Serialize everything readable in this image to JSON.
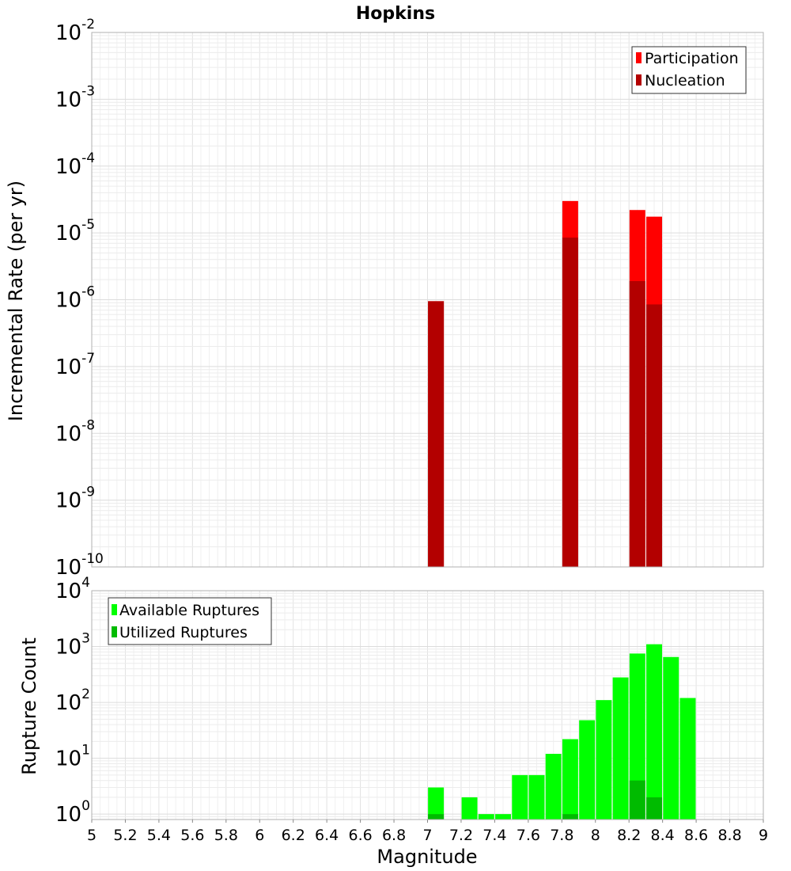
{
  "chart_data": [
    {
      "type": "bar",
      "title": "Hopkins",
      "ylabel": "Incremental Rate (per yr)",
      "xlabel": "",
      "y_scale": "log",
      "ylim": [
        1e-10,
        0.01
      ],
      "xlim": [
        5,
        9
      ],
      "y_ticks": [
        {
          "base": "10",
          "exp": "-10"
        },
        {
          "base": "10",
          "exp": "-9"
        },
        {
          "base": "10",
          "exp": "-8"
        },
        {
          "base": "10",
          "exp": "-7"
        },
        {
          "base": "10",
          "exp": "-6"
        },
        {
          "base": "10",
          "exp": "-5"
        },
        {
          "base": "10",
          "exp": "-4"
        },
        {
          "base": "10",
          "exp": "-3"
        },
        {
          "base": "10",
          "exp": "-2"
        }
      ],
      "grid": true,
      "legend_position": "top-right",
      "series": [
        {
          "name": "Participation",
          "color": "#ff0000",
          "x": [
            7.05,
            7.85,
            8.25,
            8.35
          ],
          "values": [
            9.5e-07,
            3e-05,
            2.2e-05,
            1.75e-05
          ]
        },
        {
          "name": "Nucleation",
          "color": "#b30000",
          "x": [
            7.05,
            7.85,
            8.25,
            8.35
          ],
          "values": [
            9.5e-07,
            8.5e-06,
            1.9e-06,
            8.5e-07
          ]
        }
      ]
    },
    {
      "type": "bar",
      "title": "",
      "ylabel": "Rupture Count",
      "xlabel": "Magnitude",
      "y_scale": "log",
      "ylim": [
        0.8,
        10000
      ],
      "xlim": [
        5,
        9
      ],
      "y_ticks": [
        {
          "base": "10",
          "exp": "0"
        },
        {
          "base": "10",
          "exp": "1"
        },
        {
          "base": "10",
          "exp": "2"
        },
        {
          "base": "10",
          "exp": "3"
        },
        {
          "base": "10",
          "exp": "4"
        }
      ],
      "x_ticks": [
        "5",
        "5.2",
        "5.4",
        "5.6",
        "5.8",
        "6",
        "6.2",
        "6.4",
        "6.6",
        "6.8",
        "7",
        "7.2",
        "7.4",
        "7.6",
        "7.8",
        "8",
        "8.2",
        "8.4",
        "8.6",
        "8.8",
        "9"
      ],
      "grid": true,
      "legend_position": "top-left",
      "series": [
        {
          "name": "Available Ruptures",
          "color": "#00ff00",
          "x": [
            7.05,
            7.25,
            7.35,
            7.45,
            7.55,
            7.65,
            7.75,
            7.85,
            7.95,
            8.05,
            8.15,
            8.25,
            8.35,
            8.45,
            8.55
          ],
          "values": [
            3,
            2,
            1,
            1,
            5,
            5,
            12,
            22,
            48,
            110,
            280,
            750,
            1100,
            650,
            120
          ]
        },
        {
          "name": "Utilized Ruptures",
          "color": "#00bb00",
          "x": [
            7.05,
            7.85,
            8.25,
            8.35
          ],
          "values": [
            1,
            1,
            4,
            2
          ]
        }
      ]
    }
  ]
}
